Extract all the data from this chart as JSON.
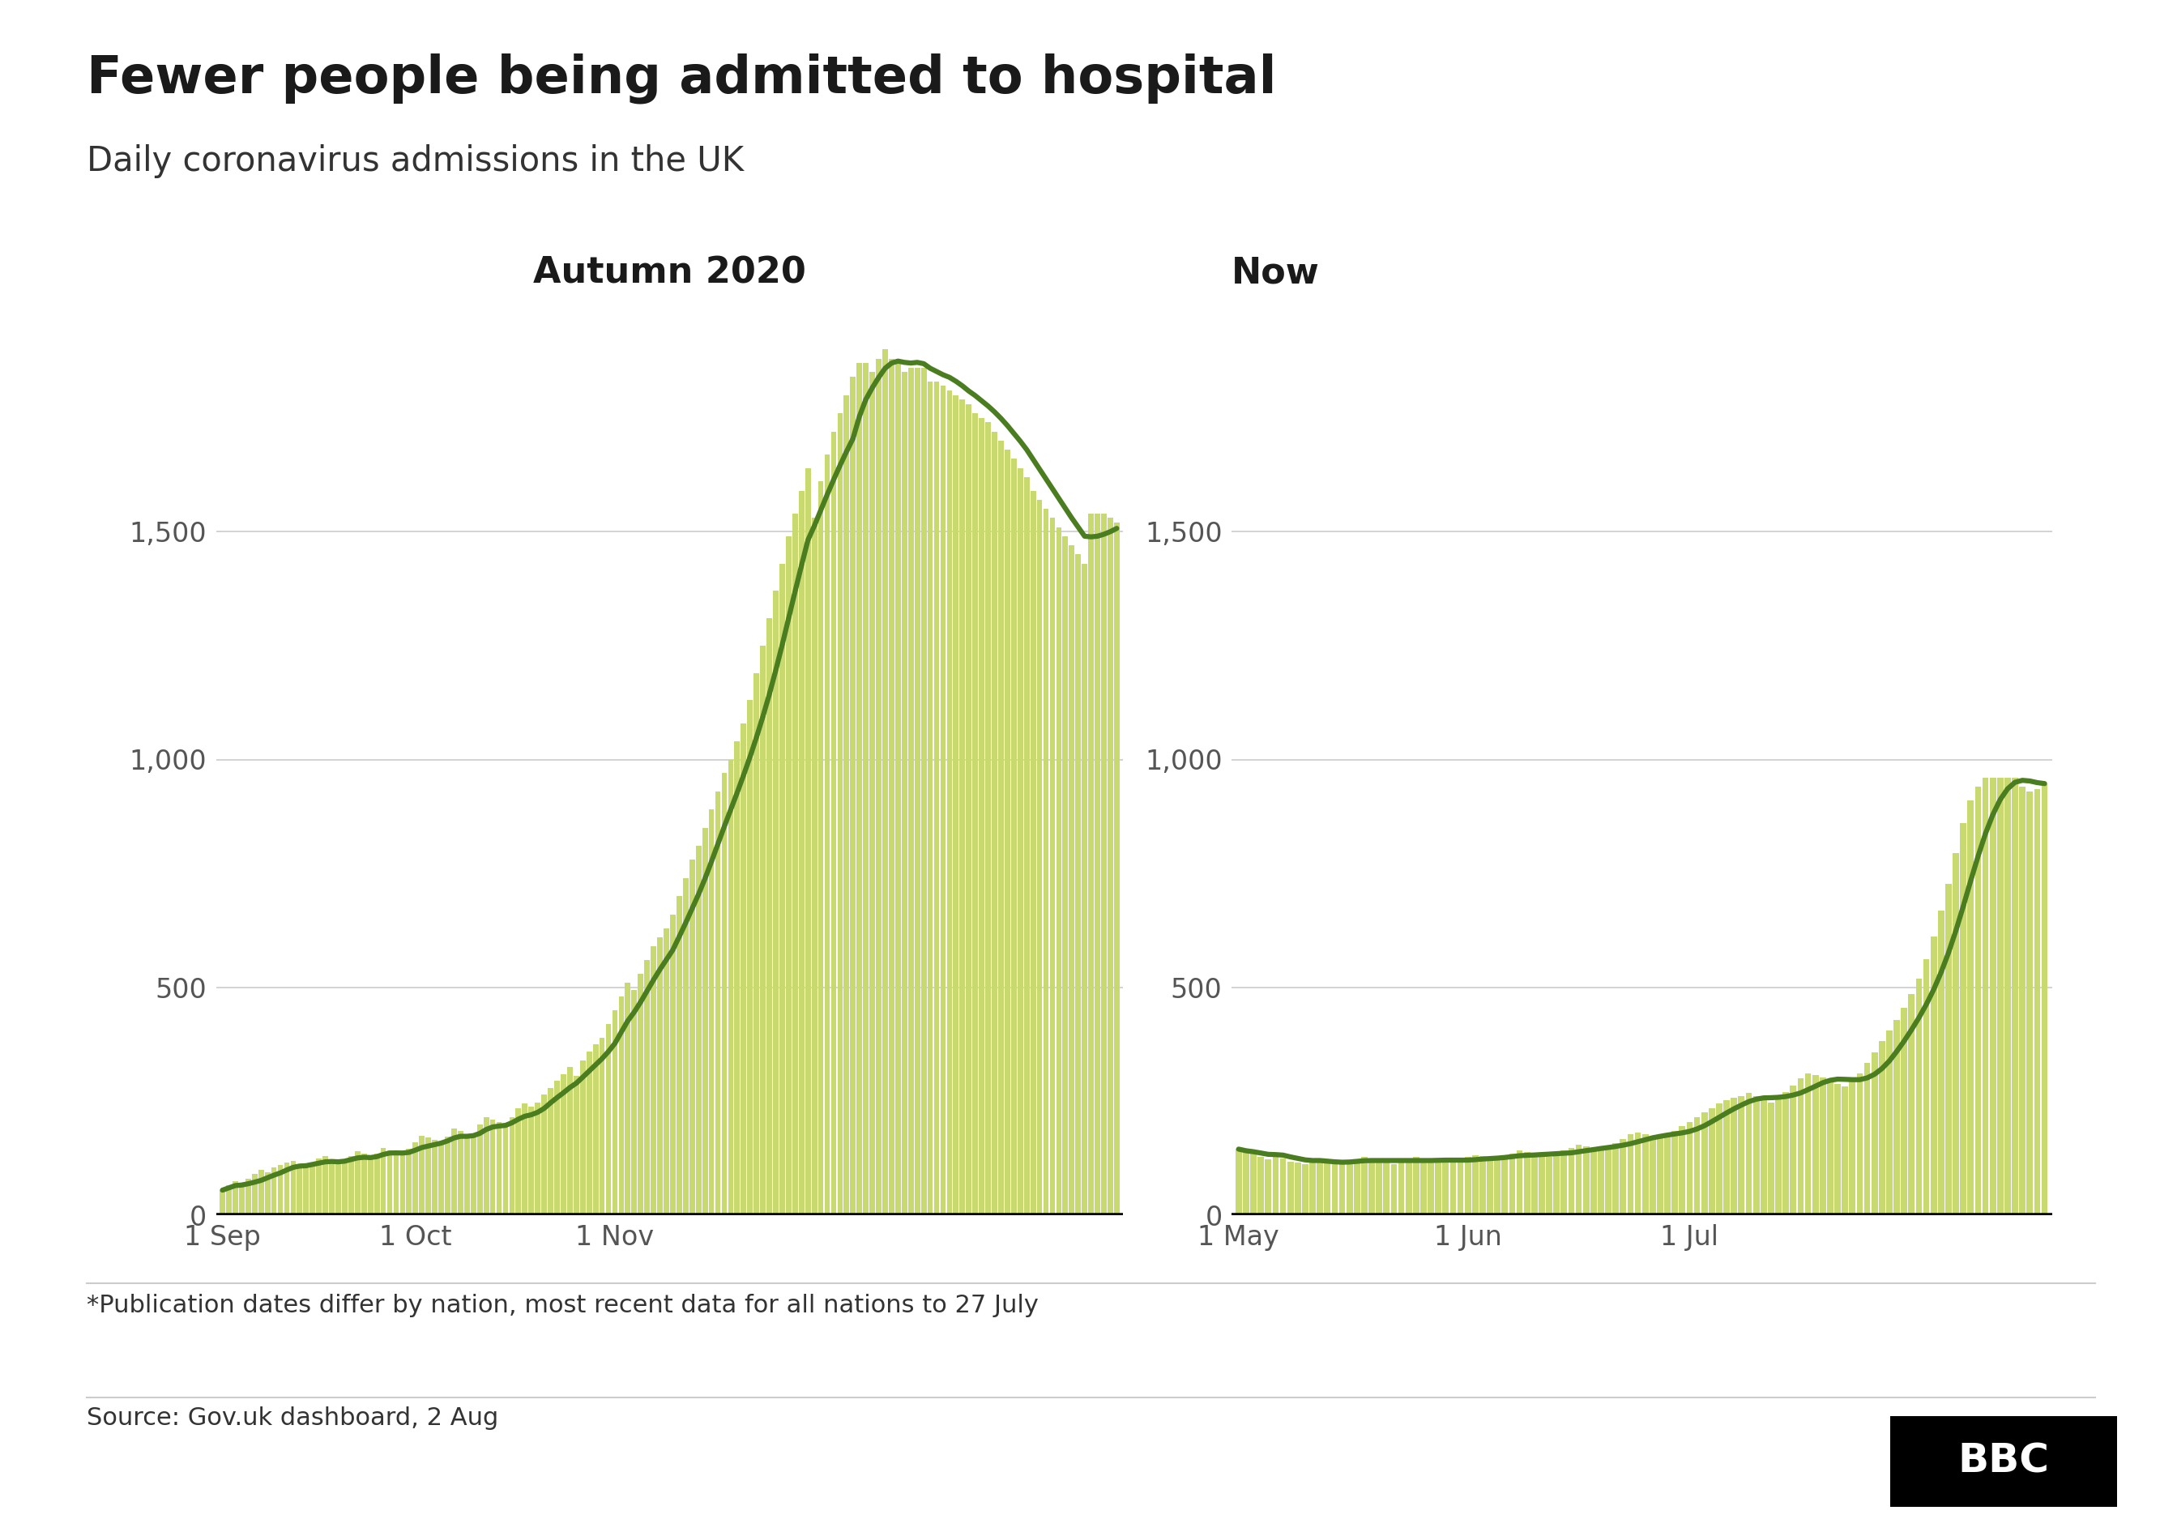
{
  "title": "Fewer people being admitted to hospital",
  "subtitle": "Daily coronavirus admissions in the UK",
  "left_panel_title": "Autumn 2020",
  "right_panel_title": "Now",
  "footnote": "*Publication dates differ by nation, most recent data for all nations to 27 July",
  "source": "Source: Gov.uk dashboard, 2 Aug",
  "bar_color": "#c8d96f",
  "line_color": "#4a7c20",
  "background_color": "#ffffff",
  "ytick_vals": [
    0,
    500,
    1000,
    1500
  ],
  "ytick_labels": [
    "0",
    "500",
    "1,000",
    "1,500"
  ],
  "ylim": [
    0,
    2000
  ],
  "left_xtick_pos": [
    0,
    30,
    61
  ],
  "left_xtick_labels": [
    "1 Sep",
    "1 Oct",
    "1 Nov"
  ],
  "right_xtick_pos": [
    0,
    31,
    61
  ],
  "right_xtick_labels": [
    "1 May",
    "1 Jun",
    "1 Jul"
  ],
  "left_data": [
    55,
    65,
    75,
    70,
    80,
    90,
    100,
    95,
    105,
    110,
    115,
    120,
    110,
    105,
    115,
    125,
    130,
    120,
    115,
    120,
    130,
    140,
    135,
    125,
    135,
    148,
    142,
    132,
    138,
    145,
    160,
    175,
    170,
    165,
    155,
    172,
    190,
    185,
    175,
    180,
    200,
    215,
    210,
    205,
    195,
    215,
    235,
    245,
    238,
    248,
    265,
    280,
    295,
    310,
    325,
    305,
    340,
    360,
    375,
    390,
    420,
    450,
    480,
    510,
    495,
    530,
    560,
    590,
    610,
    630,
    660,
    700,
    740,
    780,
    810,
    850,
    890,
    930,
    970,
    1000,
    1040,
    1080,
    1130,
    1190,
    1250,
    1310,
    1370,
    1430,
    1490,
    1540,
    1590,
    1640,
    1530,
    1610,
    1670,
    1720,
    1760,
    1800,
    1840,
    1870,
    1870,
    1850,
    1880,
    1900,
    1880,
    1870,
    1850,
    1860,
    1860,
    1860,
    1830,
    1830,
    1820,
    1810,
    1800,
    1790,
    1780,
    1760,
    1750,
    1740,
    1720,
    1700,
    1680,
    1660,
    1640,
    1620,
    1590,
    1570,
    1550,
    1530,
    1510,
    1490,
    1470,
    1450,
    1430,
    1540,
    1540,
    1540,
    1530,
    1520
  ],
  "right_data": [
    145,
    138,
    135,
    128,
    122,
    130,
    125,
    118,
    115,
    112,
    118,
    122,
    120,
    115,
    112,
    118,
    122,
    128,
    125,
    120,
    115,
    112,
    118,
    122,
    128,
    125,
    120,
    118,
    115,
    118,
    122,
    128,
    132,
    130,
    125,
    122,
    128,
    135,
    142,
    138,
    135,
    132,
    128,
    135,
    142,
    148,
    155,
    152,
    148,
    145,
    150,
    158,
    168,
    178,
    182,
    178,
    175,
    172,
    178,
    185,
    195,
    205,
    215,
    225,
    235,
    245,
    252,
    258,
    262,
    268,
    262,
    255,
    248,
    258,
    270,
    285,
    300,
    312,
    308,
    302,
    295,
    288,
    282,
    295,
    312,
    335,
    358,
    382,
    405,
    428,
    455,
    485,
    520,
    562,
    612,
    668,
    728,
    795,
    860,
    910,
    940,
    960,
    960,
    960,
    960,
    960,
    940,
    930,
    935,
    945
  ]
}
